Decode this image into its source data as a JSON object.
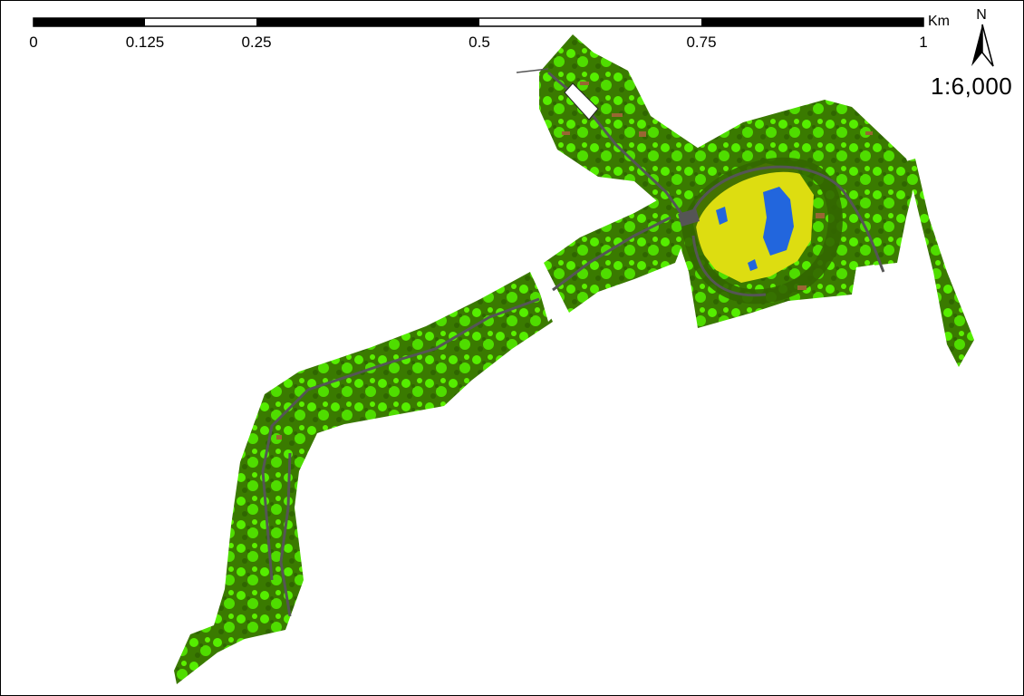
{
  "scalebar": {
    "ticks": [
      "0",
      "0.125",
      "0.25",
      "0.5",
      "0.75",
      "1"
    ],
    "unit": "Km"
  },
  "north_arrow": {
    "label": "N"
  },
  "scale_ratio": "1:6,000",
  "landcover_colors": {
    "dark_vegetation": "#336600",
    "light_vegetation": "#55ee00",
    "bare_soil_yellow": "#dddd11",
    "water": "#2266dd",
    "road_gray": "#555555",
    "soil_brown": "#996633"
  }
}
